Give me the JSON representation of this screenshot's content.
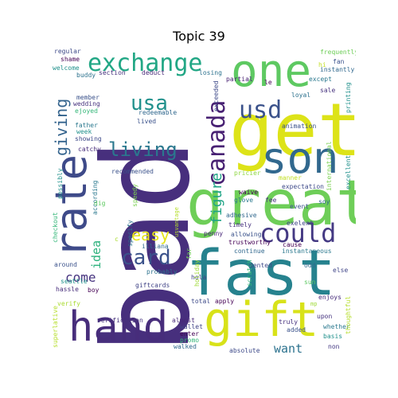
{
  "title": "Topic 39",
  "words": [
    {
      "text": "bad",
      "color": "#472f7d",
      "slot": "w0"
    },
    {
      "text": "get",
      "color": "#dde318",
      "slot": "w1"
    },
    {
      "text": "great",
      "color": "#6ece58",
      "slot": "w2"
    },
    {
      "text": "fast",
      "color": "#26828e",
      "slot": "w3"
    },
    {
      "text": "one",
      "color": "#5ec962",
      "slot": "w4"
    },
    {
      "text": "son",
      "color": "#31688e",
      "slot": "w5"
    },
    {
      "text": "rate",
      "color": "#3e4a89",
      "slot": "w6"
    },
    {
      "text": "hand",
      "color": "#472d7b",
      "slot": "w7"
    },
    {
      "text": "gift",
      "color": "#d8e219",
      "slot": "w8"
    },
    {
      "text": "exchange",
      "color": "#22a785",
      "slot": "w9"
    },
    {
      "text": "could",
      "color": "#443983",
      "slot": "w10"
    },
    {
      "text": "usd",
      "color": "#3b528b",
      "slot": "w11"
    },
    {
      "text": "canada",
      "color": "#482173",
      "slot": "w12"
    },
    {
      "text": "usa",
      "color": "#21918c",
      "slot": "w13"
    },
    {
      "text": "living",
      "color": "#2a788e",
      "slot": "w14"
    },
    {
      "text": "giving",
      "color": "#33638d",
      "slot": "w15"
    },
    {
      "text": "card",
      "color": "#3b528b",
      "slot": "w16"
    },
    {
      "text": "easy",
      "color": "#e5e419",
      "slot": "w17"
    },
    {
      "text": "figure",
      "color": "#20a486",
      "slot": "w18"
    },
    {
      "text": "idea",
      "color": "#2db27d",
      "slot": "w19"
    },
    {
      "text": "come",
      "color": "#46337f",
      "slot": "w20"
    },
    {
      "text": "want",
      "color": "#2c728e",
      "slot": "w21"
    },
    {
      "text": "adhesive",
      "color": "#31688e",
      "slot": "s0"
    },
    {
      "text": "trustworthy",
      "color": "#440154",
      "slot": "s1"
    },
    {
      "text": "allowing",
      "color": "#3b528b",
      "slot": "s2"
    },
    {
      "text": "timely",
      "color": "#46327e",
      "slot": "s3"
    },
    {
      "text": "penny",
      "color": "#482878",
      "slot": "s4"
    },
    {
      "text": "exelent",
      "color": "#404688",
      "slot": "s5"
    },
    {
      "text": "cause",
      "color": "#440154",
      "slot": "s6"
    },
    {
      "text": "continue",
      "color": "#31688e",
      "slot": "s7"
    },
    {
      "text": "instantaneous",
      "color": "#2a788e",
      "slot": "s8"
    },
    {
      "text": "dented",
      "color": "#3e4a89",
      "slot": "s9"
    },
    {
      "text": "odd",
      "color": "#31688e",
      "slot": "s10"
    },
    {
      "text": "else",
      "color": "#404688",
      "slot": "s11"
    },
    {
      "text": "sun",
      "color": "#5ec962",
      "slot": "s12"
    },
    {
      "text": "enjoys",
      "color": "#472d7b",
      "slot": "s13"
    },
    {
      "text": "upon",
      "color": "#46337f",
      "slot": "s14"
    },
    {
      "text": "whether",
      "color": "#2a788e",
      "slot": "s15"
    },
    {
      "text": "basis",
      "color": "#21918c",
      "slot": "s16"
    },
    {
      "text": "thoughtful",
      "color": "#b5de2b",
      "slot": "s17"
    },
    {
      "text": "non",
      "color": "#443983",
      "slot": "s18"
    },
    {
      "text": "added",
      "color": "#3b528b",
      "slot": "s19"
    },
    {
      "text": "truly",
      "color": "#46327e",
      "slot": "s20"
    },
    {
      "text": "total",
      "color": "#3e4a89",
      "slot": "s21"
    },
    {
      "text": "apply",
      "color": "#440154",
      "slot": "s22"
    },
    {
      "text": "hola",
      "color": "#414487",
      "slot": "s23"
    },
    {
      "text": "scratch",
      "color": "#35b779",
      "slot": "s24"
    },
    {
      "text": "holiday",
      "color": "#a0da39",
      "slot": "s25"
    },
    {
      "text": "far",
      "color": "#6ece58",
      "slot": "s26"
    },
    {
      "text": "probably",
      "color": "#2c728e",
      "slot": "s27"
    },
    {
      "text": "giftcards",
      "color": "#414487",
      "slot": "s28"
    },
    {
      "text": "boy",
      "color": "#440154",
      "slot": "s29"
    },
    {
      "text": "hassle",
      "color": "#472d7b",
      "slot": "s30"
    },
    {
      "text": "seattle",
      "color": "#21918c",
      "slot": "s31"
    },
    {
      "text": "around",
      "color": "#3b528b",
      "slot": "s32"
    },
    {
      "text": "verification",
      "color": "#46327e",
      "slot": "s33"
    },
    {
      "text": "almost",
      "color": "#482878",
      "slot": "s34"
    },
    {
      "text": "wallet",
      "color": "#414487",
      "slot": "s35"
    },
    {
      "text": "enter",
      "color": "#440154",
      "slot": "s36"
    },
    {
      "text": "promo",
      "color": "#35b779",
      "slot": "s37"
    },
    {
      "text": "walked",
      "color": "#31688e",
      "slot": "s38"
    },
    {
      "text": "absolute",
      "color": "#3e4a89",
      "slot": "s39"
    },
    {
      "text": "superlative",
      "color": "#b5de2b",
      "slot": "s40"
    },
    {
      "text": "verify",
      "color": "#aadc32",
      "slot": "s41"
    },
    {
      "text": "checkout",
      "color": "#35b779",
      "slot": "s42"
    },
    {
      "text": "possibly",
      "color": "#21918c",
      "slot": "s43"
    },
    {
      "text": "illiana",
      "color": "#31688e",
      "slot": "s44"
    },
    {
      "text": "specify",
      "color": "#2c728e",
      "slot": "s45"
    },
    {
      "text": "according",
      "color": "#2a788e",
      "slot": "s46"
    },
    {
      "text": "dig",
      "color": "#5ec962",
      "slot": "s47"
    },
    {
      "text": "speedy",
      "color": "#7ad151",
      "slot": "s48"
    },
    {
      "text": "recommended",
      "color": "#3b528b",
      "slot": "s49"
    },
    {
      "text": "catchy",
      "color": "#472d7b",
      "slot": "s50"
    },
    {
      "text": "showing",
      "color": "#3e4a89",
      "slot": "s51"
    },
    {
      "text": "week",
      "color": "#21918c",
      "slot": "s52"
    },
    {
      "text": "father",
      "color": "#2a788e",
      "slot": "s53"
    },
    {
      "text": "ejoyed",
      "color": "#35b779",
      "slot": "s54"
    },
    {
      "text": "wedding",
      "color": "#46327e",
      "slot": "s55"
    },
    {
      "text": "member",
      "color": "#3b528b",
      "slot": "s56"
    },
    {
      "text": "buddy",
      "color": "#2c728e",
      "slot": "s57"
    },
    {
      "text": "welcome",
      "color": "#21918c",
      "slot": "s58"
    },
    {
      "text": "shame",
      "color": "#440154",
      "slot": "s59"
    },
    {
      "text": "regular",
      "color": "#3e4a89",
      "slot": "s60"
    },
    {
      "text": "section",
      "color": "#46327e",
      "slot": "s61"
    },
    {
      "text": "deduct",
      "color": "#482878",
      "slot": "s62"
    },
    {
      "text": "losing",
      "color": "#2c728e",
      "slot": "s63"
    },
    {
      "text": "redeemable",
      "color": "#31688e",
      "slot": "s64"
    },
    {
      "text": "lived",
      "color": "#3b528b",
      "slot": "s65"
    },
    {
      "text": "usvantage",
      "color": "#b5de2b",
      "slot": "s66"
    },
    {
      "text": "exceeded",
      "color": "#3e4a89",
      "slot": "s67"
    },
    {
      "text": "partial",
      "color": "#482173",
      "slot": "s68"
    },
    {
      "text": "le",
      "color": "#440154",
      "slot": "s69"
    },
    {
      "text": "fan",
      "color": "#3b528b",
      "slot": "s70"
    },
    {
      "text": "instantly",
      "color": "#31688e",
      "slot": "s71"
    },
    {
      "text": "except",
      "color": "#2a788e",
      "slot": "s72"
    },
    {
      "text": "loyal",
      "color": "#2c728e",
      "slot": "s73"
    },
    {
      "text": "sale",
      "color": "#46327e",
      "slot": "s74"
    },
    {
      "text": "frequently",
      "color": "#6ece58",
      "slot": "s75"
    },
    {
      "text": "printing",
      "color": "#21918c",
      "slot": "s76"
    },
    {
      "text": "animation",
      "color": "#3b528b",
      "slot": "s77"
    },
    {
      "text": "international",
      "color": "#7ad151",
      "slot": "s78"
    },
    {
      "text": "excellent",
      "color": "#21918c",
      "slot": "s79"
    },
    {
      "text": "pricier",
      "color": "#8fd744",
      "slot": "s80"
    },
    {
      "text": "manner",
      "color": "#c2df23",
      "slot": "s81"
    },
    {
      "text": "expectation",
      "color": "#3e4a89",
      "slot": "s82"
    },
    {
      "text": "waive",
      "color": "#440154",
      "slot": "s83"
    },
    {
      "text": "glove",
      "color": "#2a788e",
      "slot": "s84"
    },
    {
      "text": "fee",
      "color": "#46327e",
      "slot": "s85"
    },
    {
      "text": "event",
      "color": "#3b528b",
      "slot": "s86"
    },
    {
      "text": "soy",
      "color": "#31688e",
      "slot": "s87"
    },
    {
      "text": "hi",
      "color": "#c2df23",
      "slot": "s88"
    },
    {
      "text": "mp",
      "color": "#a0da39",
      "slot": "s89"
    },
    {
      "text": "c",
      "color": "#aadc32",
      "slot": "s90"
    }
  ]
}
